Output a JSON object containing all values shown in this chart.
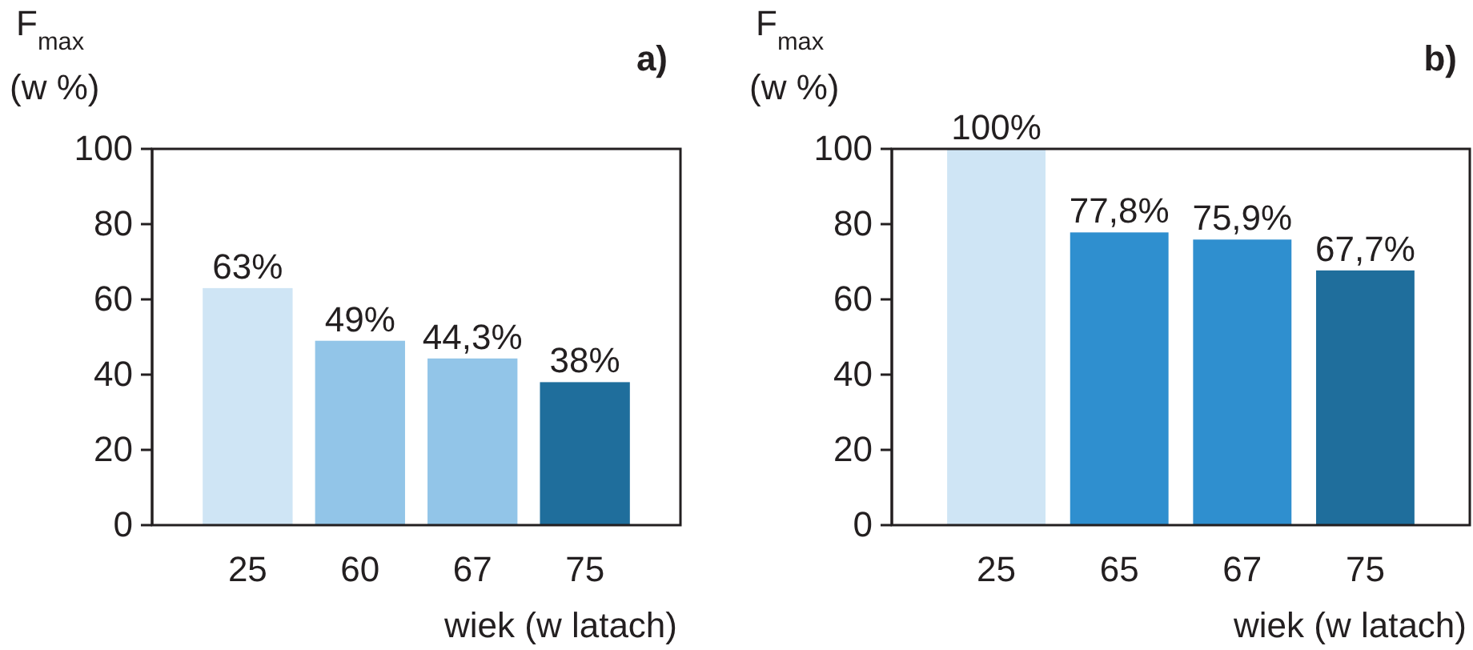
{
  "chart_data": [
    {
      "type": "bar",
      "title": "a)",
      "ylabel": "F$_{max}$ (w %)",
      "xlabel": "wiek (w latach)",
      "categories": [
        "25",
        "60",
        "67",
        "75"
      ],
      "values": [
        63,
        49,
        44.3,
        38
      ],
      "colors": [
        "#cfe5f5",
        "#92c5e8",
        "#92c5e8",
        "#1f6e9c"
      ],
      "value_labels": [
        "63%",
        "49%",
        "44,3%",
        "38%"
      ],
      "ylim": [
        0,
        100
      ],
      "yticks": [
        0,
        20,
        40,
        60,
        80,
        100
      ]
    },
    {
      "type": "bar",
      "title": "b)",
      "ylabel": "F$_{max}$ (w %)",
      "xlabel": "wiek (w latach)",
      "categories": [
        "25",
        "65",
        "67",
        "75"
      ],
      "values": [
        100,
        77.8,
        75.9,
        67.7
      ],
      "colors": [
        "#cfe5f5",
        "#2f8fcf",
        "#2f8fcf",
        "#1f6e9c"
      ],
      "value_labels": [
        "100%",
        "77,8%",
        "75,9%",
        "67,7%"
      ],
      "ylim": [
        0,
        100
      ],
      "yticks": [
        0,
        20,
        40,
        60,
        80,
        100
      ]
    }
  ]
}
